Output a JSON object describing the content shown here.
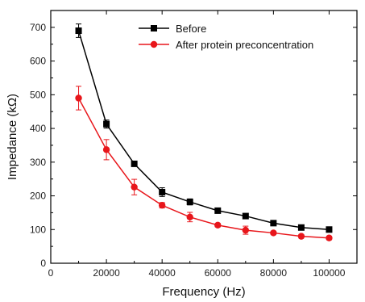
{
  "chart_data": {
    "type": "line",
    "xlabel": "Frequency (Hz)",
    "ylabel": "Impedance (kΩ)",
    "xlim": [
      0,
      110000
    ],
    "ylim": [
      0,
      750
    ],
    "xticks": [
      0,
      20000,
      40000,
      60000,
      80000,
      100000
    ],
    "yticks": [
      0,
      100,
      200,
      300,
      400,
      500,
      600,
      700
    ],
    "grid": false,
    "legend_position": "top-right",
    "x": [
      10000,
      20000,
      30000,
      40000,
      50000,
      60000,
      70000,
      80000,
      90000,
      100000
    ],
    "series": [
      {
        "name": "Before",
        "color": "#000000",
        "marker": "square",
        "values": [
          690,
          413,
          295,
          211,
          182,
          156,
          140,
          119,
          106,
          100
        ],
        "errors": [
          20,
          12,
          6,
          13,
          9,
          5,
          6,
          4,
          5,
          4
        ]
      },
      {
        "name": "After protein preconcentration",
        "color": "#e8161b",
        "marker": "circle",
        "values": [
          490,
          337,
          226,
          172,
          137,
          113,
          98,
          90,
          80,
          75
        ],
        "errors": [
          35,
          30,
          23,
          8,
          14,
          5,
          12,
          5,
          5,
          5
        ]
      }
    ]
  }
}
